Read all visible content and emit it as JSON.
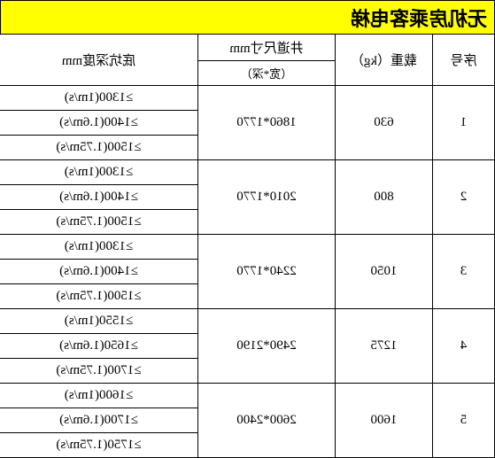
{
  "title": "无机房乘客电梯",
  "headers": {
    "seq": "序号",
    "load": "载重（kg）",
    "dim_top": "井道尺寸mm",
    "dim_sub": "（宽*深）",
    "pit": "底坑深度mm"
  },
  "rows": [
    {
      "seq": "1",
      "load": "630",
      "dim": "1860*1770",
      "pits": [
        "≥1300(1m/s)",
        "≥1400(1.6m/s)",
        "≥1500(1.75m/s)"
      ]
    },
    {
      "seq": "2",
      "load": "800",
      "dim": "2010*1770",
      "pits": [
        "≥1300(1m/s)",
        "≥1400(1.6m/s)",
        "≥1500(1.75m/s)"
      ]
    },
    {
      "seq": "3",
      "load": "1050",
      "dim": "2240*1770",
      "pits": [
        "≥1300(1m/s)",
        "≥1400(1.6m/s)",
        "≥1500(1.75m/s)"
      ]
    },
    {
      "seq": "4",
      "load": "1275",
      "dim": "2490*2190",
      "pits": [
        "≥1550(1m/s)",
        "≥1650(1.6m/s)",
        "≥1700(1.75m/s)"
      ]
    },
    {
      "seq": "5",
      "load": "1600",
      "dim": "2600*2400",
      "pits": [
        "≥1600(1m/s)",
        "≥1700(1.6m/s)",
        "≥1750(1.75m/s)"
      ]
    }
  ]
}
